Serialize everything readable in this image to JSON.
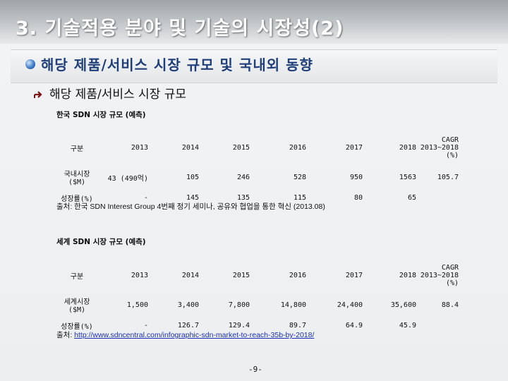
{
  "header": {
    "title": "3. 기술적용 분야 및 기술의 시장성(2)"
  },
  "section": {
    "title": "해당 제품/서비스 시장 규모 및 국내외 동향"
  },
  "subsection": {
    "title": "해당 제품/서비스 시장 규모"
  },
  "domestic": {
    "caption": "한국 SDN 시장 규모 (예측)",
    "headers": [
      "구분",
      "2013",
      "2014",
      "2015",
      "2016",
      "2017",
      "2018",
      "CAGR 2013~2018 (%)"
    ],
    "rows": [
      [
        "국내시장 ($M)",
        "43 (490억)",
        "105",
        "246",
        "528",
        "950",
        "1563",
        "105.7"
      ],
      [
        "성장률(%)",
        "-",
        "145",
        "135",
        "115",
        "80",
        "65",
        ""
      ]
    ],
    "source": "출처: 한국 SDN Interest Group 4번째 정기 세미나, 공유와 협업을 통한 혁신 (2013.08)"
  },
  "global": {
    "caption": "세계 SDN 시장 규모 (예측)",
    "headers": [
      "구분",
      "2013",
      "2014",
      "2015",
      "2016",
      "2017",
      "2018",
      "CAGR 2013~2018 (%)"
    ],
    "rows": [
      [
        "세계시장 ($M)",
        "1,500",
        "3,400",
        "7,800",
        "14,800",
        "24,400",
        "35,600",
        "88.4"
      ],
      [
        "성장률(%)",
        "-",
        "126.7",
        "129.4",
        "89.7",
        "64.9",
        "45.9",
        ""
      ]
    ],
    "source_prefix": "출처: ",
    "source_link": "http://www.sdncentral.com/infographic-sdn-market-to-reach-35b-by-2018/"
  },
  "footer": {
    "page": "-9-"
  }
}
